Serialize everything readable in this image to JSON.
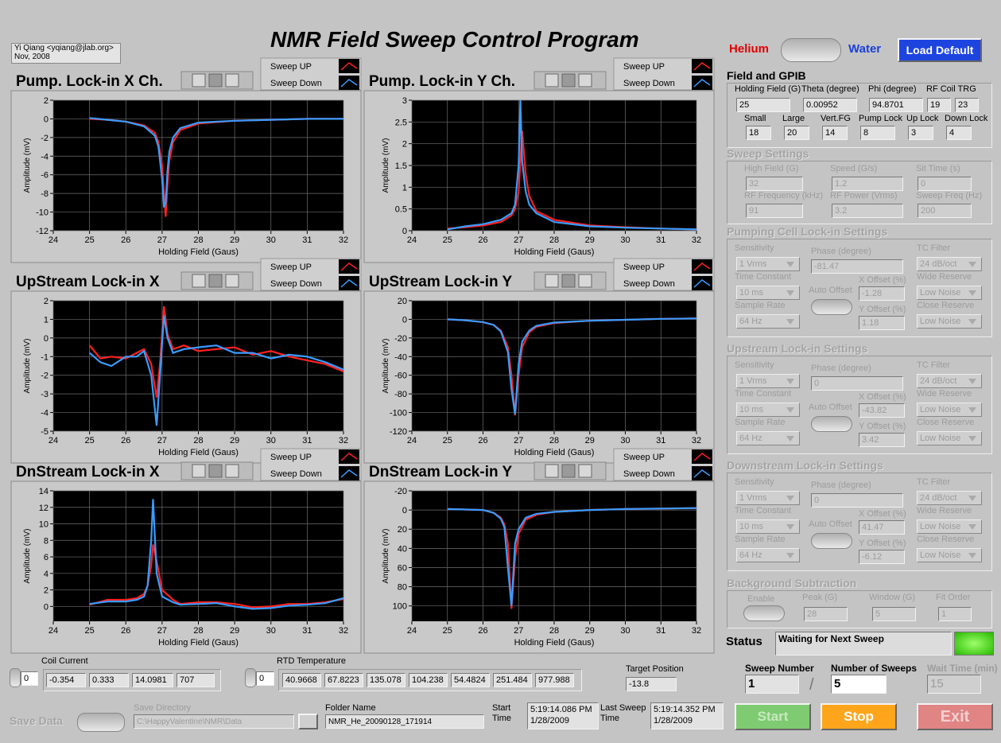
{
  "header": {
    "author": "Yi Qiang <yqiang@jlab.org>",
    "date": "Nov, 2008",
    "title": "NMR Field Sweep Control Program",
    "helium": "Helium",
    "water": "Water",
    "load_default": "Load Default"
  },
  "chart_data": [
    {
      "type": "line",
      "title": "Pump. Lock-in X Ch.",
      "x_label": "Holding Field (Gaus)",
      "y_label": "Amplitude (mV)",
      "grid": true,
      "xlim": [
        24,
        32
      ],
      "xticks": [
        24,
        25,
        26,
        27,
        28,
        29,
        30,
        31,
        32
      ],
      "ylim": [
        -12,
        2
      ],
      "yticks": [
        2,
        0,
        -2,
        -4,
        -6,
        -8,
        -10,
        -12
      ],
      "x": [
        25,
        25.5,
        26,
        26.5,
        26.8,
        26.9,
        27,
        27.05,
        27.1,
        27.15,
        27.2,
        27.3,
        27.5,
        28,
        29,
        30,
        31,
        32
      ],
      "series": [
        {
          "name": "Sweep UP",
          "color": "#ff2020",
          "values": [
            0,
            -0.1,
            -0.3,
            -0.7,
            -1.5,
            -2.5,
            -5,
            -8,
            -10.5,
            -7,
            -4.5,
            -2.5,
            -1.2,
            -0.5,
            -0.2,
            -0.1,
            0,
            0
          ]
        },
        {
          "name": "Sweep Down",
          "color": "#3a9cff",
          "values": [
            0.1,
            -0.1,
            -0.3,
            -0.8,
            -1.8,
            -3,
            -6.5,
            -9.5,
            -9,
            -5.5,
            -3.5,
            -2,
            -1,
            -0.4,
            -0.2,
            -0.1,
            0,
            0
          ]
        }
      ]
    },
    {
      "type": "line",
      "title": "Pump. Lock-in Y Ch.",
      "x_label": "Holding Field (Gaus)",
      "y_label": "Amplitude (mV)",
      "grid": true,
      "xlim": [
        24,
        32
      ],
      "xticks": [
        24,
        25,
        26,
        27,
        28,
        29,
        30,
        31,
        32
      ],
      "ylim": [
        0,
        3
      ],
      "yticks": [
        3,
        2.5,
        2,
        1.5,
        1,
        0.5,
        0
      ],
      "x": [
        25,
        25.5,
        26,
        26.5,
        26.8,
        26.9,
        27,
        27.05,
        27.1,
        27.2,
        27.3,
        27.5,
        28,
        29,
        30,
        31,
        32
      ],
      "series": [
        {
          "name": "Sweep UP",
          "color": "#ff2020",
          "values": [
            0.05,
            0.08,
            0.12,
            0.2,
            0.35,
            0.5,
            0.9,
            1.6,
            2.3,
            1.3,
            0.8,
            0.45,
            0.25,
            0.12,
            0.08,
            0.05,
            0.03
          ]
        },
        {
          "name": "Sweep Down",
          "color": "#3a9cff",
          "values": [
            0.03,
            0.1,
            0.15,
            0.25,
            0.4,
            0.6,
            1.5,
            3,
            1.6,
            0.9,
            0.6,
            0.4,
            0.2,
            0.1,
            0.07,
            0.05,
            0.03
          ]
        }
      ]
    },
    {
      "type": "line",
      "title": "UpStream Lock-in X",
      "x_label": "Holding Field (Gaus)",
      "y_label": "Amplitude (mV)",
      "grid": true,
      "xlim": [
        24,
        32
      ],
      "xticks": [
        24,
        25,
        26,
        27,
        28,
        29,
        30,
        31,
        32
      ],
      "ylim": [
        -5,
        2
      ],
      "yticks": [
        2,
        1,
        0,
        -1,
        -2,
        -3,
        -4,
        -5
      ],
      "x": [
        25,
        25.3,
        25.6,
        26,
        26.3,
        26.5,
        26.7,
        26.85,
        26.95,
        27.05,
        27.15,
        27.3,
        27.6,
        28,
        28.5,
        29,
        29.5,
        30,
        30.5,
        31,
        31.5,
        32
      ],
      "series": [
        {
          "name": "Sweep UP",
          "color": "#ff2020",
          "values": [
            -0.4,
            -1.1,
            -1,
            -1.1,
            -0.8,
            -0.6,
            -1.4,
            -3.2,
            -1.2,
            1.7,
            0.2,
            -0.6,
            -0.4,
            -0.7,
            -0.6,
            -0.5,
            -0.9,
            -0.7,
            -1,
            -1.2,
            -1.4,
            -1.8
          ]
        },
        {
          "name": "Sweep Down",
          "color": "#3a9cff",
          "values": [
            -0.8,
            -1.3,
            -1.5,
            -1,
            -1,
            -0.7,
            -2,
            -4.7,
            -1.8,
            1.2,
            0,
            -0.8,
            -0.6,
            -0.5,
            -0.4,
            -0.8,
            -0.8,
            -1.1,
            -0.9,
            -1,
            -1.3,
            -1.7
          ]
        }
      ]
    },
    {
      "type": "line",
      "title": "UpStream Lock-in Y",
      "x_label": "Holding Field (Gaus)",
      "y_label": "Amplitude (mV)",
      "grid": true,
      "xlim": [
        24,
        32
      ],
      "xticks": [
        24,
        25,
        26,
        27,
        28,
        29,
        30,
        31,
        32
      ],
      "ylim": [
        -120,
        20
      ],
      "yticks": [
        20,
        0,
        -20,
        -40,
        -60,
        -80,
        -100,
        -120
      ],
      "x": [
        25,
        25.5,
        26,
        26.3,
        26.5,
        26.7,
        26.8,
        26.9,
        27,
        27.1,
        27.3,
        27.5,
        28,
        29,
        30,
        31,
        32
      ],
      "series": [
        {
          "name": "Sweep UP",
          "color": "#ff2020",
          "values": [
            0,
            -1,
            -3,
            -6,
            -12,
            -30,
            -60,
            -103,
            -60,
            -30,
            -14,
            -8,
            -4,
            -1.5,
            -0.5,
            0.5,
            1
          ]
        },
        {
          "name": "Sweep Down",
          "color": "#3a9cff",
          "values": [
            0,
            -1,
            -3,
            -6,
            -13,
            -35,
            -75,
            -102,
            -48,
            -24,
            -12,
            -7,
            -3.5,
            -1.5,
            -0.5,
            0.5,
            1
          ]
        }
      ]
    },
    {
      "type": "line",
      "title": "DnStream Lock-in X",
      "x_label": "Holding Field (Gaus)",
      "y_label": "Amplitude (mV)",
      "grid": true,
      "xlim": [
        24,
        32
      ],
      "xticks": [
        24,
        25,
        26,
        27,
        28,
        29,
        30,
        31,
        32
      ],
      "ylim": [
        -1.8,
        14
      ],
      "yticks": [
        14,
        12,
        10,
        8,
        6,
        4,
        2,
        0
      ],
      "x": [
        25,
        25.5,
        26,
        26.3,
        26.5,
        26.6,
        26.7,
        26.75,
        26.85,
        27,
        27.3,
        27.5,
        28,
        28.5,
        29,
        29.5,
        30,
        30.5,
        31,
        31.5,
        32
      ],
      "series": [
        {
          "name": "Sweep UP",
          "color": "#ff2020",
          "values": [
            0.2,
            0.8,
            0.8,
            1,
            1.5,
            2.5,
            5,
            7.5,
            5.5,
            2,
            0.8,
            0.3,
            0.5,
            0.5,
            0.3,
            -0.1,
            0,
            0.3,
            0.3,
            0.5,
            0.9
          ]
        },
        {
          "name": "Sweep Down",
          "color": "#3a9cff",
          "values": [
            0.3,
            0.6,
            0.6,
            0.8,
            1.2,
            2.5,
            8,
            13,
            4,
            1.2,
            0.5,
            0.2,
            0.3,
            0.4,
            0,
            -0.3,
            -0.2,
            0.1,
            0.2,
            0.4,
            1
          ]
        }
      ]
    },
    {
      "type": "line",
      "title": "DnStream Lock-in Y",
      "x_label": "Holding Field (Gaus)",
      "y_label": "Amplitude (mV)",
      "grid": true,
      "xlim": [
        24,
        32
      ],
      "xticks": [
        24,
        25,
        26,
        27,
        28,
        29,
        30,
        31,
        32
      ],
      "ylim": [
        116,
        -20
      ],
      "yticks": [
        -20,
        0,
        20,
        40,
        60,
        80,
        100
      ],
      "x": [
        25,
        25.5,
        26,
        26.3,
        26.5,
        26.6,
        26.7,
        26.8,
        26.9,
        27,
        27.2,
        27.5,
        28,
        29,
        30,
        31,
        32
      ],
      "series": [
        {
          "name": "Sweep UP",
          "color": "#ff2020",
          "values": [
            -1,
            -0.5,
            0,
            3,
            8,
            15,
            35,
            103,
            50,
            25,
            10,
            5,
            2,
            0,
            -1,
            -1.5,
            -2
          ]
        },
        {
          "name": "Sweep Down",
          "color": "#3a9cff",
          "values": [
            -1,
            -0.5,
            0,
            3,
            9,
            18,
            60,
            100,
            35,
            20,
            8,
            4,
            2,
            0,
            -1,
            -1.5,
            -2
          ]
        }
      ]
    }
  ],
  "field_gpib": {
    "title": "Field and GPIB",
    "fields": [
      {
        "label": "Holding Field (G)",
        "values": [
          25
        ]
      },
      {
        "label": "Theta (degree)",
        "values": [
          0.00952
        ]
      },
      {
        "label": "Phi (degree)",
        "values": [
          94.8701
        ]
      },
      {
        "label": "RF Coil TRG",
        "values": [
          19,
          23
        ]
      },
      {
        "label": "Small",
        "values": [
          18
        ]
      },
      {
        "label": "Large",
        "values": [
          20
        ]
      },
      {
        "label": "Vert.FG",
        "values": [
          14
        ]
      },
      {
        "label": "Pump Lock",
        "values": [
          8
        ]
      },
      {
        "label": "Up Lock",
        "values": [
          3
        ]
      },
      {
        "label": "Down Lock",
        "values": [
          4
        ]
      }
    ]
  },
  "sweep_settings": {
    "title": "Sweep Settings",
    "fields": [
      {
        "label": "High Field (G)",
        "values": [
          32
        ]
      },
      {
        "label": "Speed (G/s)",
        "values": [
          1.2
        ]
      },
      {
        "label": "Sit Time (s)",
        "values": [
          0
        ]
      },
      {
        "label": "RF Frequency (kHz)",
        "values": [
          91
        ]
      },
      {
        "label": "RF Power (Vrms)",
        "values": [
          3.2
        ]
      },
      {
        "label": "Sweep Freq (Hz)",
        "values": [
          200
        ]
      }
    ]
  },
  "lockins": [
    {
      "title": "Pumping Cell Lock-in Settings",
      "auto_offset": "Auto Offset",
      "fields": [
        {
          "label": "Sensitivity",
          "values": [
            "1 Vrms"
          ]
        },
        {
          "label": "Phase (degree)",
          "values": [
            -81.47
          ]
        },
        {
          "label": "TC Filter",
          "values": [
            "24 dB/oct"
          ]
        },
        {
          "label": "Time Constant",
          "values": [
            "10 ms"
          ]
        },
        {
          "label": "X Offset (%)",
          "values": [
            -1.28
          ]
        },
        {
          "label": "Wide Reserve",
          "values": [
            "Low Noise"
          ]
        },
        {
          "label": "Sample Rate",
          "values": [
            "64 Hz"
          ]
        },
        {
          "label": "Y Offset (%)",
          "values": [
            1.18
          ]
        },
        {
          "label": "Close Reserve",
          "values": [
            "Low Noise"
          ]
        }
      ]
    },
    {
      "title": "Upstream Lock-in Settings",
      "auto_offset": "Auto Offset",
      "fields": [
        {
          "label": "Sensitivity",
          "values": [
            "1 Vrms"
          ]
        },
        {
          "label": "Phase (degree)",
          "values": [
            0
          ]
        },
        {
          "label": "TC Filter",
          "values": [
            "24 dB/oct"
          ]
        },
        {
          "label": "Time Constant",
          "values": [
            "10 ms"
          ]
        },
        {
          "label": "X Offset (%)",
          "values": [
            -43.82
          ]
        },
        {
          "label": "Wide Reserve",
          "values": [
            "Low Noise"
          ]
        },
        {
          "label": "Sample Rate",
          "values": [
            "64 Hz"
          ]
        },
        {
          "label": "Y Offset (%)",
          "values": [
            3.42
          ]
        },
        {
          "label": "Close Reserve",
          "values": [
            "Low Noise"
          ]
        }
      ]
    },
    {
      "title": "Downstream Lock-in Settings",
      "auto_offset": "Auto Offset",
      "fields": [
        {
          "label": "Sensitivity",
          "values": [
            "1 Vrms"
          ]
        },
        {
          "label": "Phase (degree)",
          "values": [
            0
          ]
        },
        {
          "label": "TC Filter",
          "values": [
            "24 dB/oct"
          ]
        },
        {
          "label": "Time Constant",
          "values": [
            "10 ms"
          ]
        },
        {
          "label": "X Offset (%)",
          "values": [
            41.47
          ]
        },
        {
          "label": "Wide Reserve",
          "values": [
            "Low Noise"
          ]
        },
        {
          "label": "Sample Rate",
          "values": [
            "64 Hz"
          ]
        },
        {
          "label": "Y Offset (%)",
          "values": [
            -6.12
          ]
        },
        {
          "label": "Close Reserve",
          "values": [
            "Low Noise"
          ]
        }
      ]
    }
  ],
  "background": {
    "title": "Background Subtraction",
    "enable": "Enable",
    "fields": [
      {
        "label": "Peak (G)",
        "values": [
          28
        ]
      },
      {
        "label": "Window (G)",
        "values": [
          5
        ]
      },
      {
        "label": "Fit Order",
        "values": [
          1
        ]
      }
    ]
  },
  "status": {
    "label": "Status",
    "text": "Waiting for Next Sweep"
  },
  "sweep": {
    "number_label": "Sweep Number",
    "number": 1,
    "separator": "/",
    "count_label": "Number of Sweeps",
    "count": 5,
    "wait_label": "Wait Time (min)",
    "wait": 15
  },
  "buttons": {
    "start": "Start",
    "stop": "Stop",
    "exit": "Exit"
  },
  "coil": {
    "label": "Coil Current",
    "index": 0,
    "values": [
      -0.354,
      0.333,
      14.0981,
      707
    ]
  },
  "rtd": {
    "label": "RTD Temperature",
    "index": 0,
    "values": [
      40.9668,
      67.8223,
      135.078,
      104.238,
      54.4824,
      251.484,
      977.988
    ]
  },
  "target": {
    "label": "Target Position",
    "value": -13.8
  },
  "save": {
    "label": "Save Data",
    "dir_label": "Save Directory",
    "dir": "C:\\HappyValentine\\NMR\\Data",
    "folder_label": "Folder Name",
    "folder": "NMR_He_20090128_171914",
    "start_label": "Start Time",
    "start_time": "5:19:14.086 PM",
    "start_date": "1/28/2009",
    "last_label": "Last Sweep Time",
    "last_time": "5:19:14.352 PM",
    "last_date": "1/28/2009"
  }
}
